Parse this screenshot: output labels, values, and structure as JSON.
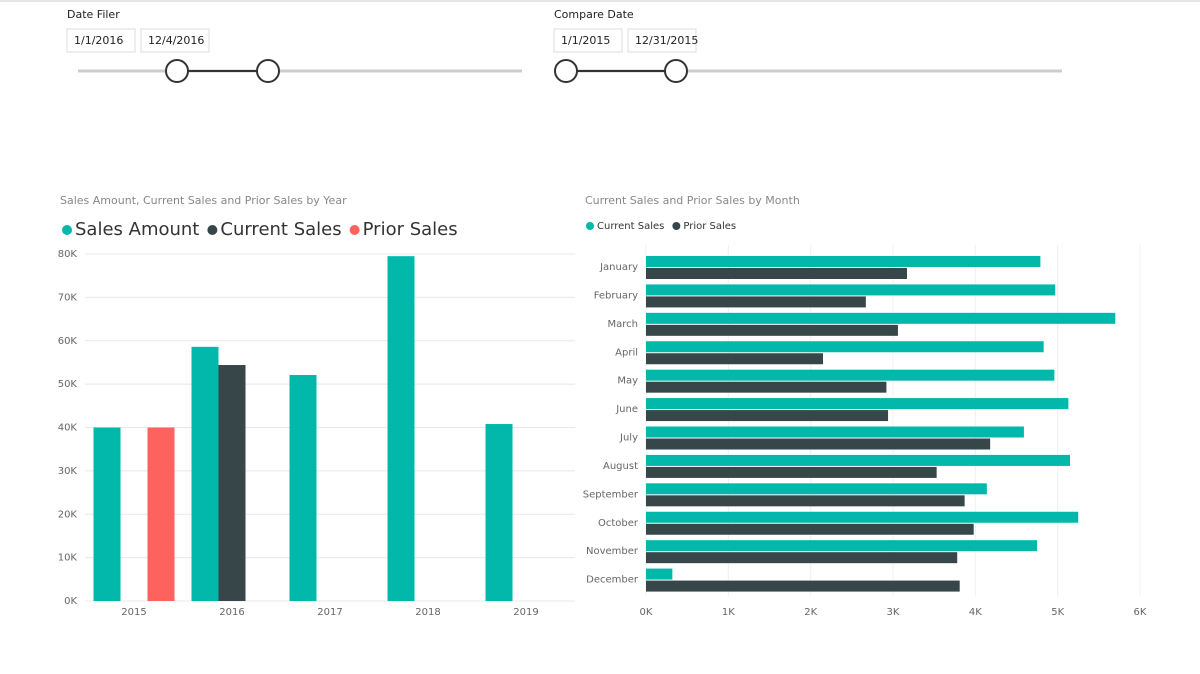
{
  "slicers": [
    {
      "title": "Date Filer",
      "start": "1/1/2016",
      "end": "12/4/2016"
    },
    {
      "title": "Compare Date",
      "start": "1/1/2015",
      "end": "12/31/2015"
    }
  ],
  "chart_data": [
    {
      "type": "bar",
      "title": "Sales Amount, Current Sales and Prior Sales by Year",
      "categories": [
        "2015",
        "2016",
        "2017",
        "2018",
        "2019"
      ],
      "series": [
        {
          "name": "Sales Amount",
          "color": "#01B8AA",
          "values": [
            40000,
            58600,
            52100,
            79500,
            40800
          ]
        },
        {
          "name": "Current Sales",
          "color": "#374649",
          "values": [
            null,
            54400,
            null,
            null,
            null
          ]
        },
        {
          "name": "Prior Sales",
          "color": "#FD625E",
          "values": [
            40000,
            null,
            null,
            null,
            null
          ]
        }
      ],
      "ylim": [
        0,
        80000
      ],
      "yticks": [
        {
          "value": 0,
          "label": "0K"
        },
        {
          "value": 10000,
          "label": "10K"
        },
        {
          "value": 20000,
          "label": "20K"
        },
        {
          "value": 30000,
          "label": "30K"
        },
        {
          "value": 40000,
          "label": "40K"
        },
        {
          "value": 50000,
          "label": "50K"
        },
        {
          "value": 60000,
          "label": "60K"
        },
        {
          "value": 70000,
          "label": "70K"
        },
        {
          "value": 80000,
          "label": "80K"
        }
      ],
      "grid": true
    },
    {
      "type": "barh",
      "title": "Current Sales and Prior Sales by Month",
      "categories": [
        "January",
        "February",
        "March",
        "April",
        "May",
        "June",
        "July",
        "August",
        "September",
        "October",
        "November",
        "December"
      ],
      "series": [
        {
          "name": "Current Sales",
          "color": "#01B8AA",
          "values": [
            4790,
            4970,
            5700,
            4830,
            4960,
            5130,
            4590,
            5150,
            4140,
            5250,
            4750,
            320
          ]
        },
        {
          "name": "Prior Sales",
          "color": "#374649",
          "values": [
            3170,
            2670,
            3060,
            2150,
            2920,
            2940,
            4180,
            3530,
            3870,
            3980,
            3780,
            3810
          ]
        }
      ],
      "xlim": [
        0,
        6000
      ],
      "xticks": [
        {
          "value": 0,
          "label": "0K"
        },
        {
          "value": 1000,
          "label": "1K"
        },
        {
          "value": 2000,
          "label": "2K"
        },
        {
          "value": 3000,
          "label": "3K"
        },
        {
          "value": 4000,
          "label": "4K"
        },
        {
          "value": 5000,
          "label": "5K"
        },
        {
          "value": 6000,
          "label": "6K"
        }
      ],
      "grid": true
    }
  ]
}
